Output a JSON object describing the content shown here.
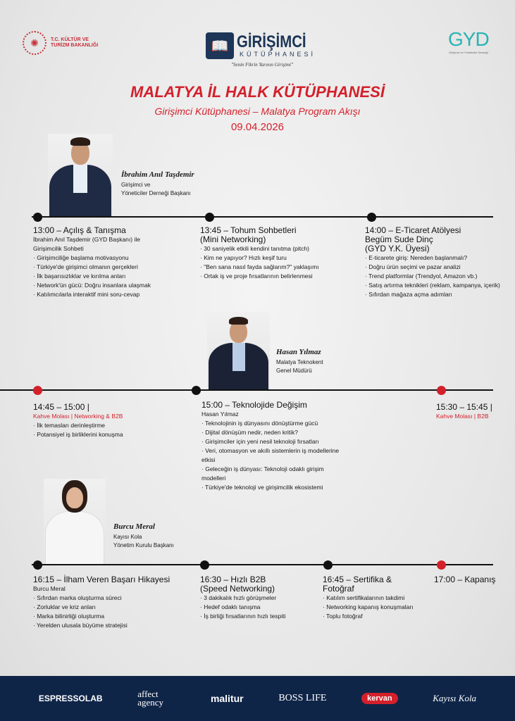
{
  "header": {
    "ministry_logo": "T.C. KÜLTÜR VE TURİZM BAKANLIĞI",
    "brand_logo_line1": "GİRİŞİMCİ",
    "brand_logo_line2": "KÜTÜPHANESİ",
    "brand_slogan": "\"Senin Fikrin Yarının Girişimi\"",
    "gyd_logo": "GYD",
    "gyd_subtitle": "Girişimci ve Yöneticiler Derneği",
    "title": "MALATYA İL HALK KÜTÜPHANESİ",
    "subtitle": "Girişimci Kütüphanesi – Malatya Program Akışı",
    "date": "09.04.2026"
  },
  "colors": {
    "accent_red": "#d4202b",
    "footer_navy": "#0f2548",
    "gyd_teal": "#2ab3b3"
  },
  "speakers": [
    {
      "name": "İbrahim Anıl Taşdemir",
      "role_line1": "Girişimci ve",
      "role_line2": "Yöneticiler Derneği Başkanı"
    },
    {
      "name": "Hasan Yılmaz",
      "role_line1": "Malatya Teknokent",
      "role_line2": "Genel Müdürü"
    },
    {
      "name": "Burcu Meral",
      "role_line1": "Kayısı Kola",
      "role_line2": "Yönetim Kurulu Başkanı"
    }
  ],
  "sessions": {
    "s1300": {
      "title": "13:00 – Açılış & Tanışma",
      "sub1": "İbrahim Anıl Taşdemir (GYD Başkanı) ile",
      "sub2": "Girişimcilik Sohbeti",
      "items": [
        "Girişimciliğe başlama motivasyonu",
        "Türkiye'de girişimci olmanın gerçekleri",
        "İlk başarısızlıklar ve kırılma anları",
        "Network'ün gücü: Doğru insanlara ulaşmak",
        "Katılımcılarla interaktif mini soru-cevap"
      ]
    },
    "s1345": {
      "title1": "13:45 – Tohum Sohbetleri",
      "title2": "(Mini Networking)",
      "items": [
        "30 saniyelik etkili kendini tanıtma (pitch)",
        "Kim ne yapıyor? Hızlı keşif turu",
        "\"Ben sana nasıl fayda sağlarım?\" yaklaşımı",
        "Ortak iş ve proje fırsatlarının belirlenmesi"
      ]
    },
    "s1400": {
      "title1": "14:00 – E-Ticaret Atölyesi",
      "title2": "Begüm Sude Dinç",
      "title3": "(GYD Y.K. Üyesi)",
      "items": [
        "E-ticarete giriş: Nereden başlanmalı?",
        "Doğru ürün seçimi ve pazar analizi",
        "Trend platformlar (Trendyol, Amazon vb.)",
        "Satış artırma teknikleri (reklam, kampanya, içerik)",
        "Sıfırdan mağaza açma adımları"
      ]
    },
    "s1445": {
      "title": "14:45 – 15:00 |",
      "sub": "Kahve Molası | Networking & B2B",
      "items": [
        "İlk temasları derinleştirme",
        "Potansiyel iş birliklerini konuşma"
      ]
    },
    "s1500": {
      "title": "15:00 – Teknolojide Değişim",
      "sub": "Hasan Yılmaz",
      "items": [
        "Teknolojinin iş dünyasını dönüştürme gücü",
        "Dijital dönüşüm nedir, neden kritik?",
        "Girişimciler için yeni nesil teknoloji fırsatları",
        "Veri, otomasyon ve akıllı sistemlerin iş modellerine etkisi",
        "Geleceğin iş dünyası: Teknoloji odaklı girişim modelleri",
        "Türkiye'de teknoloji ve girişimcilik ekosistemi"
      ]
    },
    "s1530": {
      "title": "15:30 – 15:45 |",
      "sub": "Kahve Molası | B2B"
    },
    "s1615": {
      "title": "16:15 – İlham Veren Başarı Hikayesi",
      "sub": "Burcu Meral",
      "items": [
        "Sıfırdan marka oluşturma süreci",
        "Zorluklar ve kriz anları",
        "Marka bilinirliği oluşturma",
        "Yerelden ulusala büyüme stratejisi"
      ]
    },
    "s1630": {
      "title1": "16:30 – Hızlı B2B",
      "title2": "(Speed Networking)",
      "items": [
        "3 dakikalık hızlı görüşmeler",
        "Hedef odaklı tanışma",
        "İş birliği fırsatlarının hızlı tespiti"
      ]
    },
    "s1645": {
      "title1": "16:45 – Sertifika &",
      "title2": "Fotoğraf",
      "items": [
        "Katılım sertifikalarının takdimi",
        "Networking kapanış konuşmaları",
        "Toplu fotoğraf"
      ]
    },
    "s1700": {
      "title": "17:00 – Kapanış"
    }
  },
  "sponsors": [
    "ESPRESSOLAB",
    "affect agency",
    "malitur",
    "BOSS LIFE",
    "kervan",
    "Kayısı Kola"
  ]
}
